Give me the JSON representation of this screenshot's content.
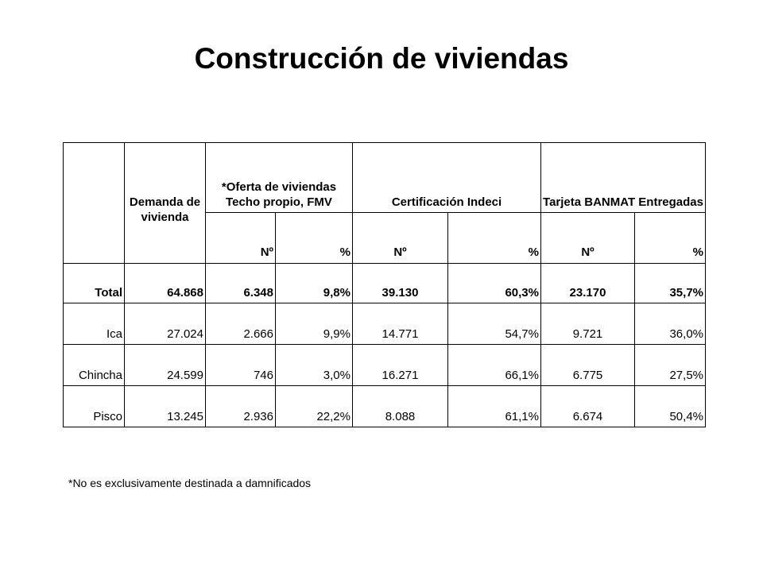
{
  "title": "Construcción de viviendas",
  "table": {
    "headers": {
      "demand": "Demanda de vivienda",
      "offer": "*Oferta de viviendas Techo propio, FMV",
      "cert": "Certificación Indeci",
      "banmat": "Tarjeta BANMAT Entregadas"
    },
    "sub_headers": [
      "Nº",
      "%",
      "Nº",
      "%",
      "Nº",
      "%"
    ],
    "rows": [
      {
        "name": "Total",
        "demand": "64.868",
        "offer_n": "6.348",
        "offer_p": "9,8%",
        "cert_n": "39.130",
        "cert_p": "60,3%",
        "ban_n": "23.170",
        "ban_p": "35,7%"
      },
      {
        "name": "Ica",
        "demand": "27.024",
        "offer_n": "2.666",
        "offer_p": "9,9%",
        "cert_n": "14.771",
        "cert_p": "54,7%",
        "ban_n": "9.721",
        "ban_p": "36,0%"
      },
      {
        "name": "Chincha",
        "demand": "24.599",
        "offer_n": "746",
        "offer_p": "3,0%",
        "cert_n": "16.271",
        "cert_p": "66,1%",
        "ban_n": "6.775",
        "ban_p": "27,5%"
      },
      {
        "name": "Pisco",
        "demand": "13.245",
        "offer_n": "2.936",
        "offer_p": "22,2%",
        "cert_n": "8.088",
        "cert_p": "61,1%",
        "ban_n": "6.674",
        "ban_p": "50,4%"
      }
    ]
  },
  "footnote": "*No es exclusivamente destinada a damnificados"
}
